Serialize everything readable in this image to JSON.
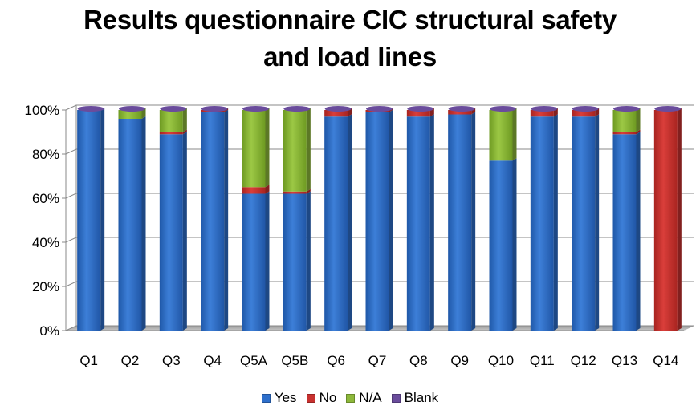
{
  "chart_data": {
    "type": "bar",
    "stacked": true,
    "title_lines": [
      "Results questionnaire CIC structural safety",
      "and load lines"
    ],
    "xlabel": "",
    "ylabel": "",
    "categories": [
      "Q1",
      "Q2",
      "Q3",
      "Q4",
      "Q5A",
      "Q5B",
      "Q6",
      "Q7",
      "Q8",
      "Q9",
      "Q10",
      "Q11",
      "Q12",
      "Q13",
      "Q14"
    ],
    "ylim": [
      0,
      100
    ],
    "yticks": [
      "0%",
      "20%",
      "40%",
      "60%",
      "80%",
      "100%"
    ],
    "series": [
      {
        "name": "Yes",
        "color": "#2E6FCB",
        "values": [
          100,
          96,
          89,
          99,
          62,
          62,
          97,
          99,
          97,
          98,
          77,
          97,
          97,
          89,
          0
        ]
      },
      {
        "name": "No",
        "color": "#C8312F",
        "values": [
          0,
          0,
          1,
          1,
          3,
          1,
          3,
          1,
          3,
          2,
          0,
          3,
          3,
          1,
          100
        ]
      },
      {
        "name": "N/A",
        "color": "#8DB83A",
        "values": [
          0,
          4,
          10,
          0,
          35,
          37,
          0,
          0,
          0,
          0,
          23,
          0,
          0,
          10,
          0
        ]
      },
      {
        "name": "Blank",
        "color": "#6A4C9C",
        "values": [
          0,
          0,
          0,
          0,
          0,
          0,
          0,
          0,
          0,
          0,
          0,
          0,
          0,
          0,
          0
        ]
      }
    ],
    "grid": true,
    "legend_position": "bottom"
  }
}
